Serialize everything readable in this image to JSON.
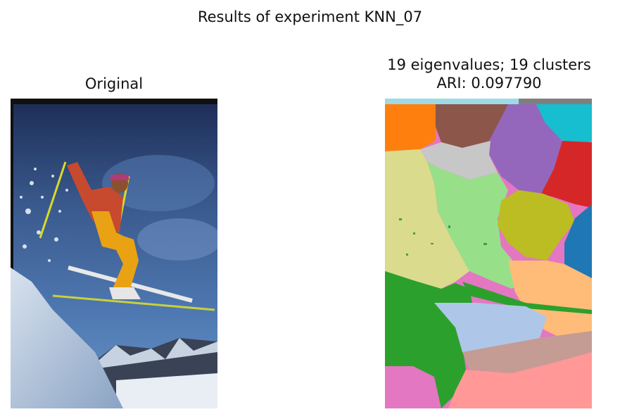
{
  "figure": {
    "suptitle": "Results of experiment KNN_07"
  },
  "left_panel": {
    "title": "Original"
  },
  "right_panel": {
    "title_line1": "19 eigenvalues; 19 clusters",
    "title_line2": "ARI: 0.097790"
  },
  "segment_colors": [
    "#1f77b4",
    "#ff7f0e",
    "#2ca02c",
    "#d62728",
    "#9467bd",
    "#8c564b",
    "#e377c2",
    "#7f7f7f",
    "#bcbd22",
    "#17becf",
    "#aec7e8",
    "#ffbb78",
    "#98df8a",
    "#ff9896",
    "#c5b0d5",
    "#c49c94",
    "#c7c7c7",
    "#dbdb8d",
    "#9edae5"
  ]
}
